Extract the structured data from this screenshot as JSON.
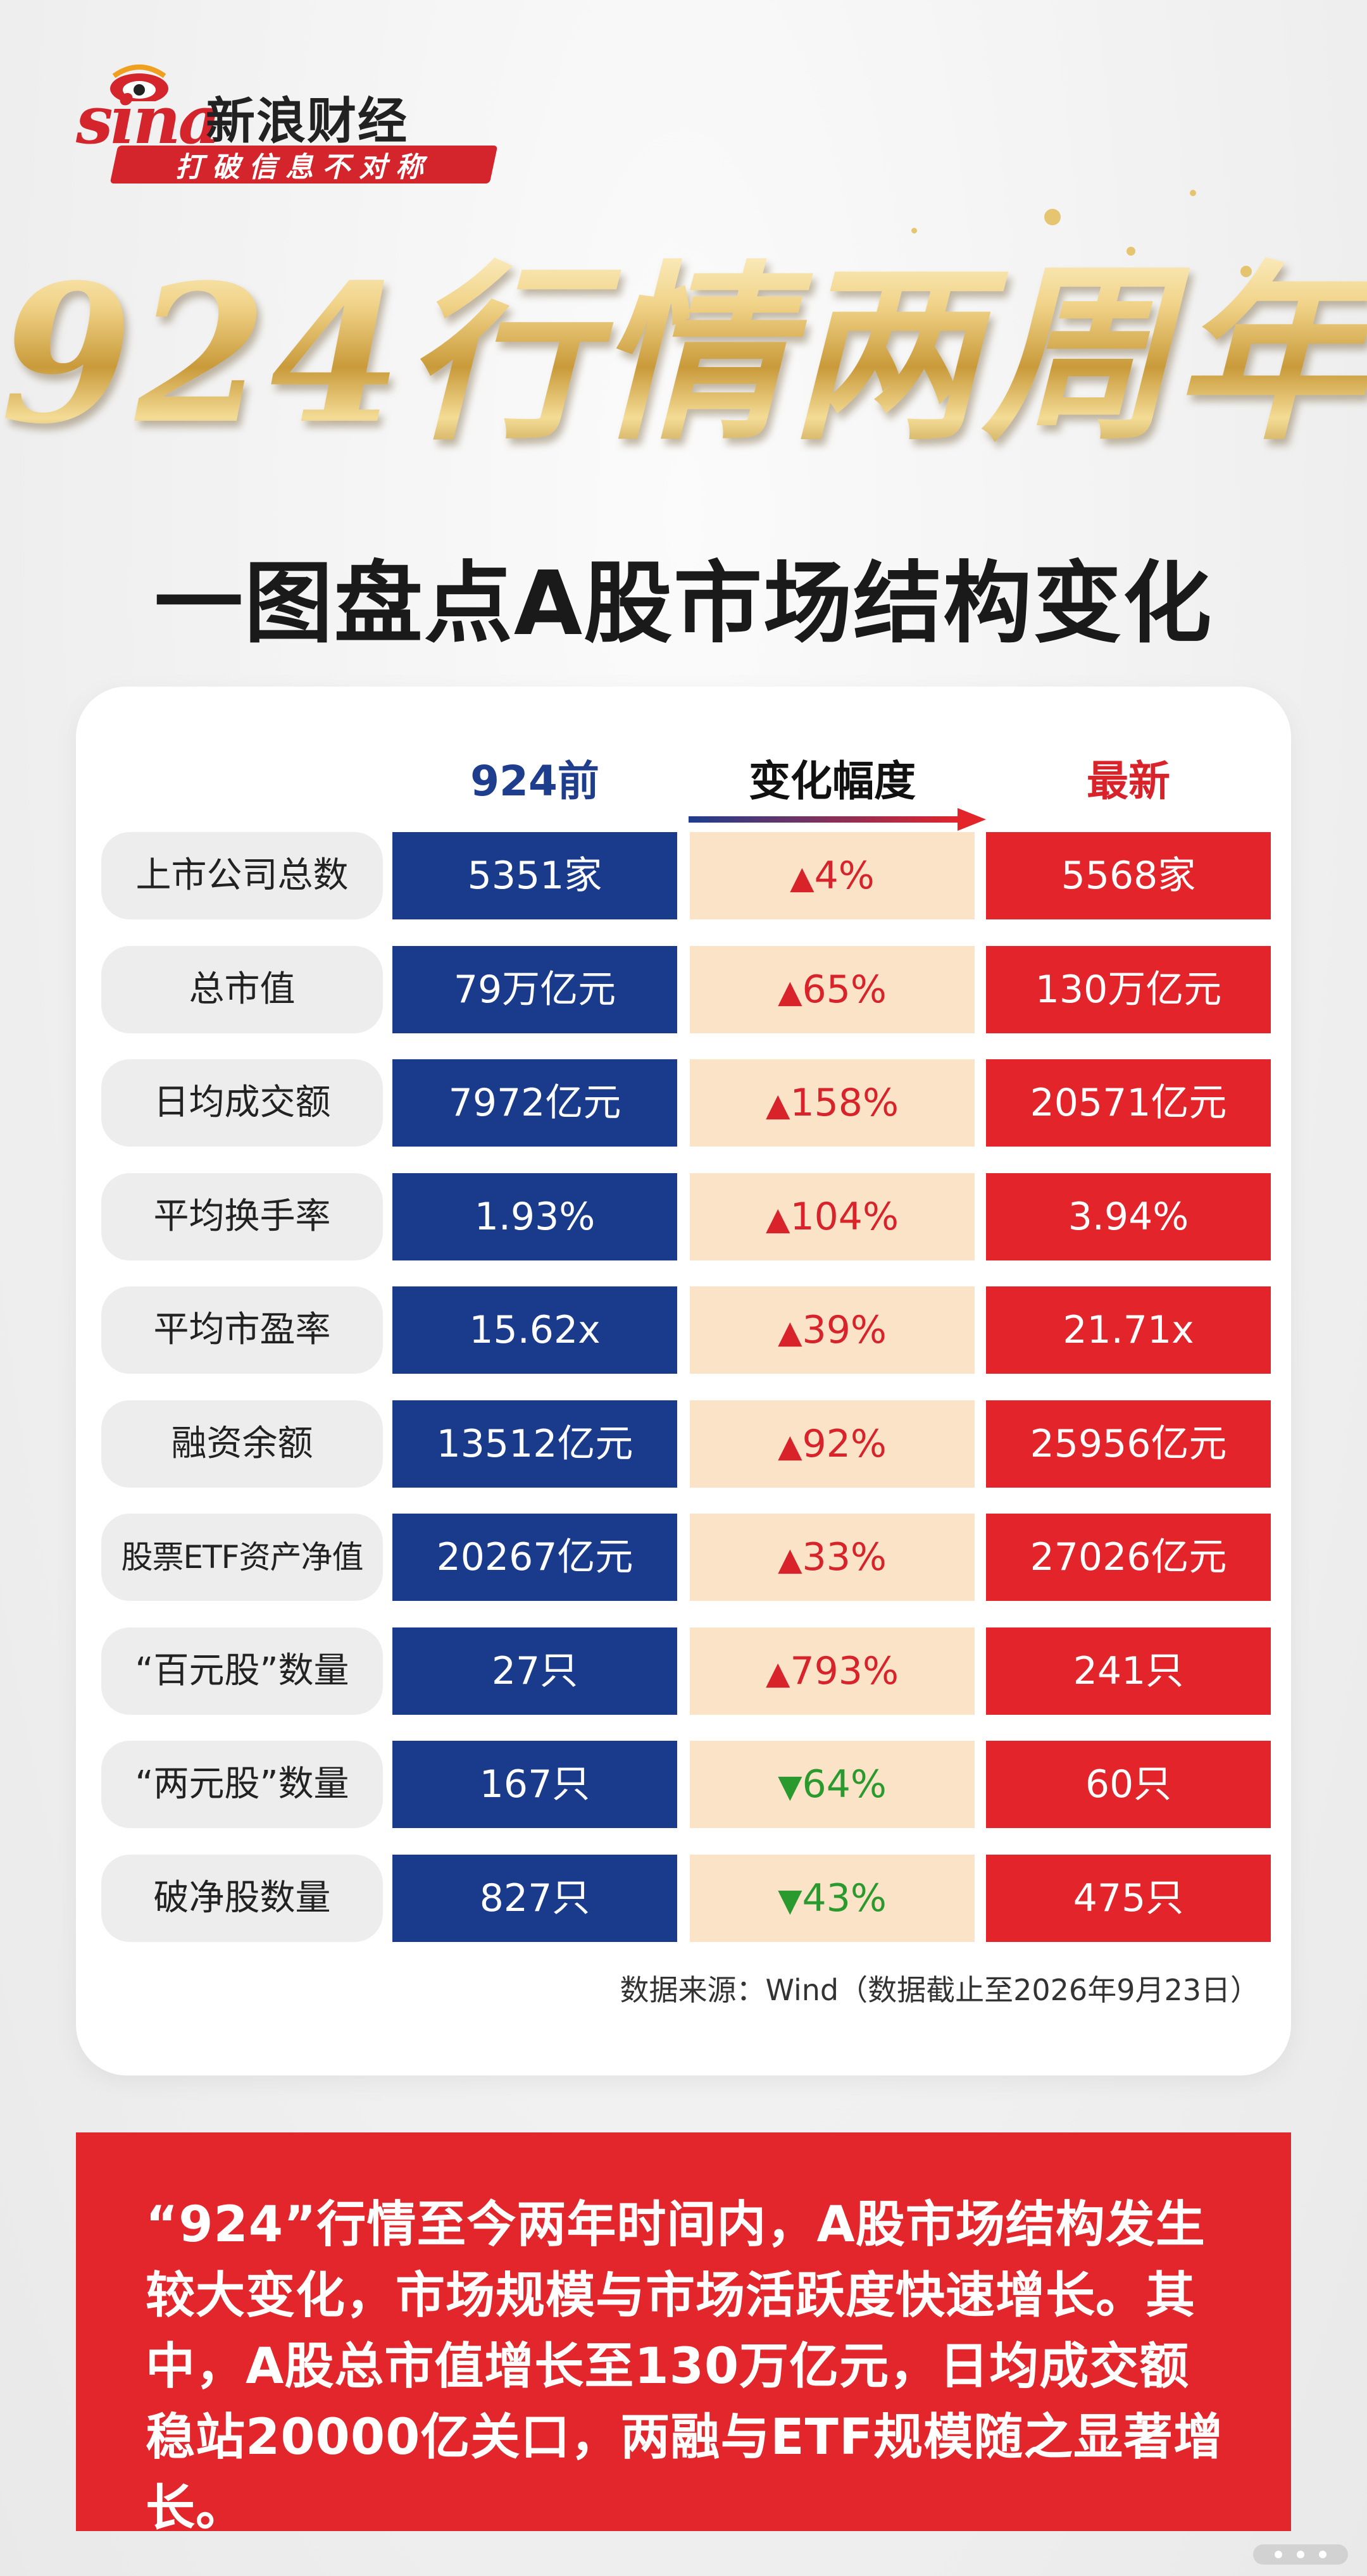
{
  "brand": {
    "logo_text": "sina",
    "name": "新浪财经",
    "slogan": "打破信息不对称",
    "accent_color": "#d4252d"
  },
  "title": "924行情两周年",
  "subtitle": "一图盘点A股市场结构变化",
  "table": {
    "headers": {
      "before": "924前",
      "change": "变化幅度",
      "latest": "最新"
    },
    "colors": {
      "before": "#1a3b8c",
      "change": "#fbe3c8",
      "latest": "#e3242b",
      "up": "#d8232a",
      "down": "#2a9a2e"
    },
    "rows": [
      {
        "label": "上市公司总数",
        "before": "5351家",
        "direction": "up",
        "change": "4%",
        "latest": "5568家"
      },
      {
        "label": "总市值",
        "before": "79万亿元",
        "direction": "up",
        "change": "65%",
        "latest": "130万亿元"
      },
      {
        "label": "日均成交额",
        "before": "7972亿元",
        "direction": "up",
        "change": "158%",
        "latest": "20571亿元"
      },
      {
        "label": "平均换手率",
        "before": "1.93%",
        "direction": "up",
        "change": "104%",
        "latest": "3.94%"
      },
      {
        "label": "平均市盈率",
        "before": "15.62x",
        "direction": "up",
        "change": "39%",
        "latest": "21.71x"
      },
      {
        "label": "融资余额",
        "before": "13512亿元",
        "direction": "up",
        "change": "92%",
        "latest": "25956亿元"
      },
      {
        "label": "股票ETF资产净值",
        "before": "20267亿元",
        "direction": "up",
        "change": "33%",
        "latest": "27026亿元"
      },
      {
        "label": "“百元股”数量",
        "before": "27只",
        "direction": "up",
        "change": "793%",
        "latest": "241只"
      },
      {
        "label": "“两元股”数量",
        "before": "167只",
        "direction": "down",
        "change": "64%",
        "latest": "60只"
      },
      {
        "label": "破净股数量",
        "before": "827只",
        "direction": "down",
        "change": "43%",
        "latest": "475只"
      }
    ],
    "source": "数据来源：Wind（数据截止至2026年9月23日）"
  },
  "summary": "“924”行情至今两年时间内，A股市场结构发生较大变化，市场规模与市场活跃度快速增长。其中，A股总市值增长至130万亿元，日均成交额稳站20000亿关口，两融与ETF规模随之显著增长。"
}
